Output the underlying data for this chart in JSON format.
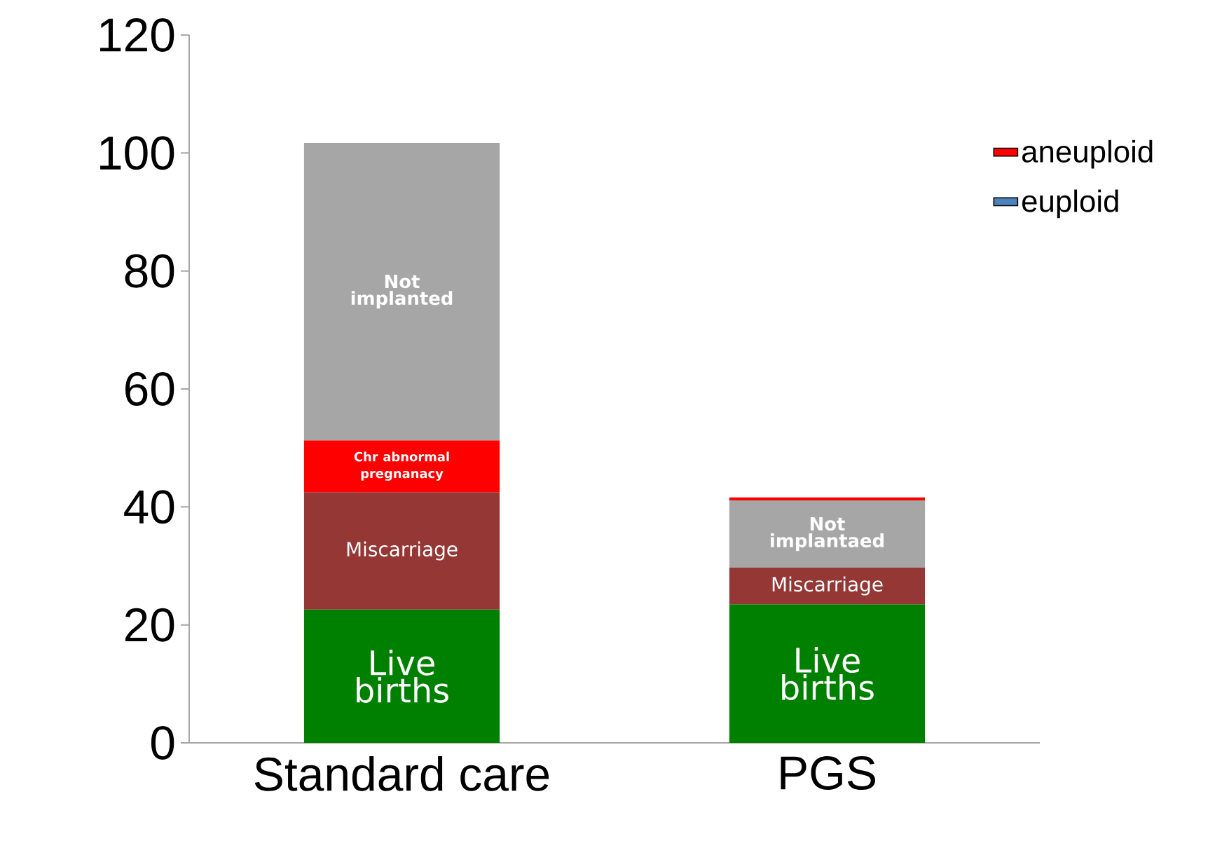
{
  "chart_data": {
    "type": "bar",
    "stacked": true,
    "categories": [
      "Standard care",
      "PGS"
    ],
    "series": [
      {
        "color": "#008000",
        "values": [
          22.6,
          23.5
        ],
        "value_labels": [
          "Live births",
          "Live births"
        ]
      },
      {
        "color": "#953735",
        "values": [
          19.9,
          6.2
        ],
        "value_labels": [
          "Miscarriage",
          "Miscarriage"
        ]
      },
      {
        "color": "#ff0000",
        "values": [
          8.8,
          null
        ],
        "value_labels": [
          "Chr abnormal pregnanacy",
          null
        ]
      },
      {
        "color": "#a6a6a6",
        "values": [
          50.4,
          11.4
        ],
        "value_labels": [
          "Not implanted",
          "Not implantaed"
        ]
      },
      {
        "name": "aneuploid",
        "color": "#ff0000",
        "values": [
          null,
          0.5
        ]
      },
      {
        "name": "euploid",
        "color": "#4f81bd",
        "values": [
          null,
          null
        ]
      }
    ],
    "ylim": [
      0,
      120
    ],
    "yticks": [
      0,
      20,
      40,
      60,
      80,
      100,
      120
    ],
    "legend": "right",
    "grid": false
  }
}
